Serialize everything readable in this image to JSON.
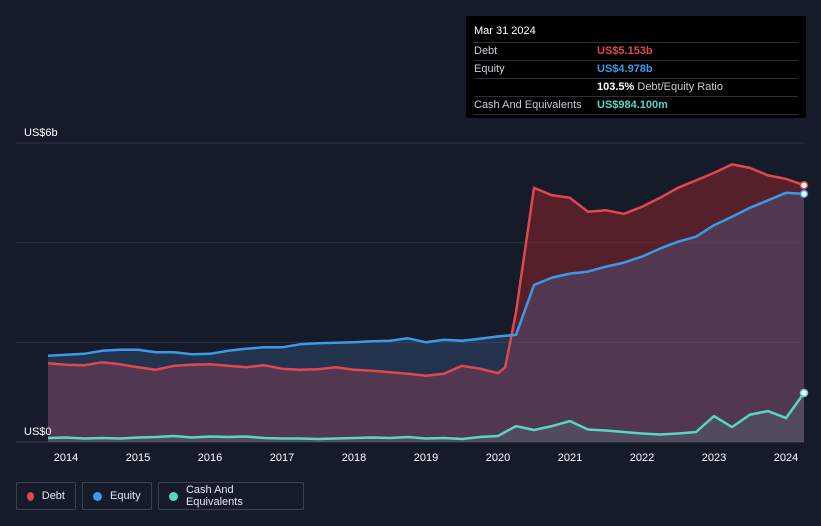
{
  "tooltip": {
    "date": "Mar 31 2024",
    "debt_label": "Debt",
    "debt_value": "US$5.153b",
    "equity_label": "Equity",
    "equity_value": "US$4.978b",
    "ratio_value": "103.5%",
    "ratio_label": "Debt/Equity Ratio",
    "cash_label": "Cash And Equivalents",
    "cash_value": "US$984.100m"
  },
  "legend": {
    "debt": "Debt",
    "equity": "Equity",
    "cash": "Cash And Equivalents"
  },
  "colors": {
    "debt": "#e0484f",
    "equity": "#3b9ae8",
    "cash": "#58d6c4",
    "background": "#151b28"
  },
  "chart_data": {
    "type": "area",
    "title": "",
    "xlabel": "",
    "ylabel": "",
    "y_top_label": "US$6b",
    "y_bottom_label": "US$0",
    "ylim": [
      0,
      6
    ],
    "xlim": [
      2013.75,
      2024.25
    ],
    "x_ticks": [
      "2014",
      "2015",
      "2016",
      "2017",
      "2018",
      "2019",
      "2020",
      "2021",
      "2022",
      "2023",
      "2024"
    ],
    "series": [
      {
        "name": "Debt",
        "x": [
          2013.75,
          2014.0,
          2014.25,
          2014.5,
          2014.75,
          2015.0,
          2015.25,
          2015.5,
          2015.75,
          2016.0,
          2016.25,
          2016.5,
          2016.75,
          2017.0,
          2017.25,
          2017.5,
          2017.75,
          2018.0,
          2018.25,
          2018.5,
          2018.75,
          2019.0,
          2019.25,
          2019.5,
          2019.75,
          2020.0,
          2020.1,
          2020.25,
          2020.5,
          2020.75,
          2021.0,
          2021.25,
          2021.5,
          2021.75,
          2022.0,
          2022.25,
          2022.5,
          2022.75,
          2023.0,
          2023.25,
          2023.5,
          2023.75,
          2024.0,
          2024.25
        ],
        "values": [
          1.58,
          1.55,
          1.54,
          1.6,
          1.56,
          1.5,
          1.45,
          1.53,
          1.55,
          1.56,
          1.53,
          1.5,
          1.54,
          1.47,
          1.45,
          1.46,
          1.5,
          1.45,
          1.43,
          1.4,
          1.37,
          1.33,
          1.37,
          1.53,
          1.47,
          1.38,
          1.5,
          2.6,
          5.1,
          4.95,
          4.9,
          4.62,
          4.65,
          4.58,
          4.72,
          4.9,
          5.1,
          5.25,
          5.4,
          5.57,
          5.5,
          5.35,
          5.28,
          5.153
        ]
      },
      {
        "name": "Equity",
        "x": [
          2013.75,
          2014.0,
          2014.25,
          2014.5,
          2014.75,
          2015.0,
          2015.25,
          2015.5,
          2015.75,
          2016.0,
          2016.25,
          2016.5,
          2016.75,
          2017.0,
          2017.25,
          2017.5,
          2017.75,
          2018.0,
          2018.25,
          2018.5,
          2018.75,
          2019.0,
          2019.25,
          2019.5,
          2019.75,
          2020.0,
          2020.25,
          2020.5,
          2020.75,
          2021.0,
          2021.25,
          2021.5,
          2021.75,
          2022.0,
          2022.25,
          2022.5,
          2022.75,
          2023.0,
          2023.25,
          2023.5,
          2023.75,
          2024.0,
          2024.25
        ],
        "values": [
          1.73,
          1.75,
          1.77,
          1.83,
          1.85,
          1.85,
          1.8,
          1.8,
          1.76,
          1.77,
          1.83,
          1.87,
          1.9,
          1.9,
          1.96,
          1.98,
          1.99,
          2.0,
          2.02,
          2.03,
          2.08,
          2.0,
          2.05,
          2.03,
          2.07,
          2.12,
          2.15,
          3.15,
          3.3,
          3.38,
          3.42,
          3.52,
          3.6,
          3.72,
          3.88,
          4.02,
          4.12,
          4.35,
          4.52,
          4.7,
          4.85,
          5.0,
          4.978
        ]
      },
      {
        "name": "Cash And Equivalents",
        "x": [
          2013.75,
          2014.0,
          2014.25,
          2014.5,
          2014.75,
          2015.0,
          2015.25,
          2015.5,
          2015.75,
          2016.0,
          2016.25,
          2016.5,
          2016.75,
          2017.0,
          2017.25,
          2017.5,
          2017.75,
          2018.0,
          2018.25,
          2018.5,
          2018.75,
          2019.0,
          2019.25,
          2019.5,
          2019.75,
          2020.0,
          2020.25,
          2020.5,
          2020.75,
          2021.0,
          2021.25,
          2021.5,
          2021.75,
          2022.0,
          2022.25,
          2022.5,
          2022.75,
          2023.0,
          2023.25,
          2023.5,
          2023.75,
          2024.0,
          2024.25
        ],
        "values": [
          0.08,
          0.09,
          0.07,
          0.08,
          0.07,
          0.09,
          0.1,
          0.12,
          0.09,
          0.11,
          0.1,
          0.11,
          0.08,
          0.07,
          0.07,
          0.06,
          0.07,
          0.08,
          0.09,
          0.08,
          0.1,
          0.07,
          0.08,
          0.06,
          0.1,
          0.12,
          0.32,
          0.24,
          0.32,
          0.42,
          0.25,
          0.23,
          0.2,
          0.17,
          0.15,
          0.17,
          0.2,
          0.52,
          0.3,
          0.55,
          0.62,
          0.48,
          0.9841
        ]
      }
    ]
  }
}
